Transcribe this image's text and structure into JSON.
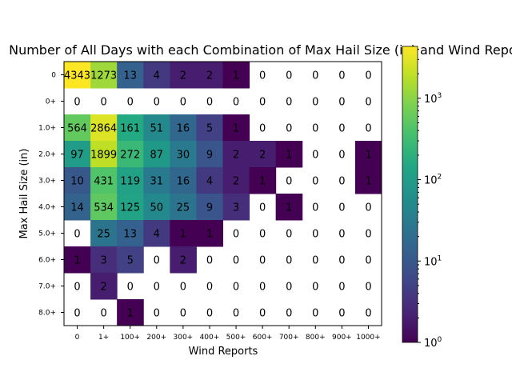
{
  "chart_data": {
    "type": "heatmap",
    "title": "Number of All Days with each Combination of Max Hail Size (in) and Wind Reports",
    "xlabel": "Wind Reports",
    "ylabel": "Max Hail Size (in)",
    "x_categories": [
      "0",
      "1+",
      "100+",
      "200+",
      "300+",
      "400+",
      "500+",
      "600+",
      "700+",
      "800+",
      "900+",
      "1000+"
    ],
    "y_categories": [
      "0",
      "0+",
      "1.0+",
      "2.0+",
      "3.0+",
      "4.0+",
      "5.0+",
      "6.0+",
      "7.0+",
      "8.0+"
    ],
    "values": [
      [
        4343,
        1273,
        13,
        4,
        2,
        2,
        1,
        0,
        0,
        0,
        0,
        0
      ],
      [
        0,
        0,
        0,
        0,
        0,
        0,
        0,
        0,
        0,
        0,
        0,
        0
      ],
      [
        564,
        2864,
        161,
        51,
        16,
        5,
        1,
        0,
        0,
        0,
        0,
        0
      ],
      [
        97,
        1899,
        272,
        87,
        30,
        9,
        2,
        2,
        1,
        0,
        0,
        1
      ],
      [
        10,
        431,
        119,
        31,
        16,
        4,
        2,
        1,
        0,
        0,
        0,
        1
      ],
      [
        14,
        534,
        125,
        50,
        25,
        9,
        3,
        0,
        1,
        0,
        0,
        0
      ],
      [
        0,
        25,
        13,
        4,
        1,
        1,
        0,
        0,
        0,
        0,
        0,
        0
      ],
      [
        1,
        3,
        5,
        0,
        2,
        0,
        0,
        0,
        0,
        0,
        0,
        0
      ],
      [
        0,
        2,
        0,
        0,
        0,
        0,
        0,
        0,
        0,
        0,
        0,
        0
      ],
      [
        0,
        0,
        1,
        0,
        0,
        0,
        0,
        0,
        0,
        0,
        0,
        0
      ]
    ],
    "color_scale": "log",
    "colormap": "viridis",
    "colorbar": {
      "range": [
        1,
        4343
      ],
      "tick_bases": [
        "10",
        "10",
        "10",
        "10"
      ],
      "tick_exponents": [
        "0",
        "1",
        "2",
        "3"
      ]
    },
    "zero_cells_color": "#ffffff"
  }
}
